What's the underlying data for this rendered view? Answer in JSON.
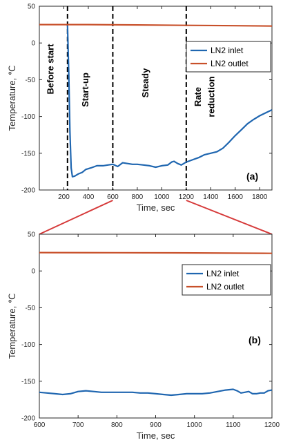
{
  "colors": {
    "inlet": "#1f66b0",
    "outlet": "#c8502a",
    "connector": "#d63a3a",
    "axis": "#262626"
  },
  "chart_data": [
    {
      "type": "line",
      "panel_label": "(a)",
      "xlabel": "Time, sec",
      "ylabel": "Temperature, ℃",
      "xlim": [
        0,
        1900
      ],
      "ylim": [
        -200,
        50
      ],
      "xticks": [
        200,
        400,
        600,
        800,
        1000,
        1200,
        1400,
        1600,
        1800
      ],
      "yticks": [
        -200,
        -150,
        -100,
        -50,
        0,
        50
      ],
      "grid": false,
      "legend_position": "top-right",
      "vlines": [
        230,
        600,
        1200
      ],
      "phase_labels": [
        {
          "text": "Before start",
          "x": 115
        },
        {
          "text": "Start-up",
          "x": 400
        },
        {
          "text": "Steady",
          "x": 890
        },
        {
          "text": "Rate",
          "x": 1320
        },
        {
          "text": "reduction",
          "x": 1430
        }
      ],
      "series": [
        {
          "name": "LN2 inlet",
          "color": "#1f66b0",
          "x": [
            230,
            240,
            250,
            260,
            270,
            290,
            320,
            350,
            380,
            420,
            470,
            520,
            560,
            600,
            640,
            680,
            720,
            760,
            800,
            850,
            900,
            950,
            1000,
            1050,
            1080,
            1100,
            1130,
            1160,
            1200,
            1250,
            1300,
            1350,
            1400,
            1450,
            1500,
            1550,
            1600,
            1650,
            1700,
            1750,
            1800,
            1850,
            1900
          ],
          "y": [
            24,
            -40,
            -120,
            -170,
            -182,
            -181,
            -178,
            -176,
            -172,
            -170,
            -167,
            -167,
            -166,
            -165,
            -168,
            -163,
            -164,
            -165,
            -165,
            -166,
            -167,
            -169,
            -167,
            -166,
            -162,
            -161,
            -164,
            -166,
            -162,
            -159,
            -156,
            -152,
            -150,
            -148,
            -143,
            -135,
            -126,
            -118,
            -110,
            -104,
            -99,
            -95,
            -91
          ]
        },
        {
          "name": "LN2 outlet",
          "color": "#c8502a",
          "x": [
            0,
            400,
            800,
            1200,
            1600,
            1900
          ],
          "y": [
            25,
            25,
            24.5,
            24,
            23.5,
            23
          ]
        }
      ]
    },
    {
      "type": "line",
      "panel_label": "(b)",
      "xlabel": "Time, sec",
      "ylabel": "Temperature, ℃",
      "xlim": [
        600,
        1200
      ],
      "ylim": [
        -200,
        50
      ],
      "xticks": [
        600,
        700,
        800,
        900,
        1000,
        1100,
        1200
      ],
      "yticks": [
        -200,
        -150,
        -100,
        -50,
        0,
        50
      ],
      "grid": false,
      "legend_position": "top-right",
      "series": [
        {
          "name": "LN2 inlet",
          "color": "#1f66b0",
          "x": [
            600,
            620,
            640,
            660,
            680,
            700,
            720,
            740,
            760,
            780,
            800,
            820,
            840,
            860,
            880,
            900,
            920,
            940,
            960,
            980,
            1000,
            1020,
            1040,
            1060,
            1080,
            1100,
            1110,
            1120,
            1130,
            1140,
            1150,
            1160,
            1170,
            1180,
            1190,
            1200
          ],
          "y": [
            -165,
            -166,
            -167,
            -168,
            -167,
            -164,
            -163,
            -164,
            -165,
            -165,
            -165,
            -165,
            -165,
            -166,
            -166,
            -167,
            -168,
            -169,
            -168,
            -167,
            -167,
            -167,
            -166,
            -164,
            -162,
            -161,
            -163,
            -166,
            -165,
            -164,
            -167,
            -167,
            -166,
            -166,
            -163,
            -162
          ]
        },
        {
          "name": "LN2 outlet",
          "color": "#c8502a",
          "x": [
            600,
            800,
            1000,
            1200
          ],
          "y": [
            25,
            24.8,
            24.5,
            24
          ]
        }
      ]
    }
  ]
}
